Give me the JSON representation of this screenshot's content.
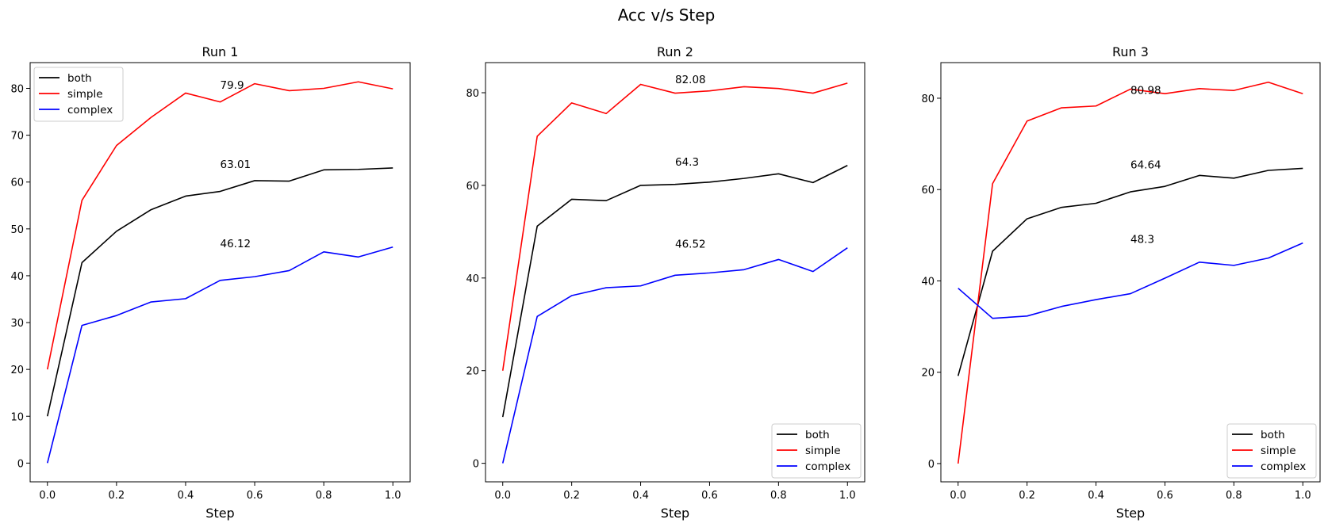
{
  "figure_title": "Acc v/s Step",
  "colors": {
    "both": "#000000",
    "simple": "#ff0000",
    "complex": "#0000ff"
  },
  "chart_data": [
    {
      "type": "line",
      "title": "Run 1",
      "xlabel": "Step",
      "ylabel": "",
      "x": [
        0.0,
        0.1,
        0.2,
        0.3,
        0.4,
        0.5,
        0.6,
        0.7,
        0.8,
        0.9,
        1.0
      ],
      "xlim": [
        -0.05,
        1.05
      ],
      "ylim": [
        -4,
        85.5
      ],
      "xticks": [
        0.0,
        0.2,
        0.4,
        0.6,
        0.8,
        1.0
      ],
      "xtick_labels": [
        "0.0",
        "0.2",
        "0.4",
        "0.6",
        "0.8",
        "1.0"
      ],
      "yticks": [
        0,
        10,
        20,
        30,
        40,
        50,
        60,
        70,
        80
      ],
      "ytick_labels": [
        "0",
        "10",
        "20",
        "30",
        "40",
        "50",
        "60",
        "70",
        "80"
      ],
      "legend_position": "upper-left",
      "grid": false,
      "series": [
        {
          "name": "both",
          "color": "#000000",
          "values": [
            10,
            42.8,
            49.5,
            54.1,
            57,
            58,
            60.3,
            60.2,
            62.6,
            62.7,
            63.01
          ]
        },
        {
          "name": "simple",
          "color": "#ff0000",
          "values": [
            20,
            56.1,
            67.8,
            73.8,
            79,
            77.1,
            81,
            79.5,
            80,
            81.4,
            79.9
          ]
        },
        {
          "name": "complex",
          "color": "#0000ff",
          "values": [
            0,
            29.4,
            31.5,
            34.4,
            35.1,
            39,
            39.8,
            41.1,
            45.1,
            44,
            46.12
          ]
        }
      ],
      "annotations": [
        {
          "text": "79.9",
          "x": 0.5,
          "y": 79.9
        },
        {
          "text": "63.01",
          "x": 0.5,
          "y": 63.01
        },
        {
          "text": "46.12",
          "x": 0.5,
          "y": 46.12
        }
      ]
    },
    {
      "type": "line",
      "title": "Run 2",
      "xlabel": "Step",
      "ylabel": "",
      "x": [
        0.0,
        0.1,
        0.2,
        0.3,
        0.4,
        0.5,
        0.6,
        0.7,
        0.8,
        0.9,
        1.0
      ],
      "xlim": [
        -0.05,
        1.05
      ],
      "ylim": [
        -4,
        86.5
      ],
      "xticks": [
        0.0,
        0.2,
        0.4,
        0.6,
        0.8,
        1.0
      ],
      "xtick_labels": [
        "0.0",
        "0.2",
        "0.4",
        "0.6",
        "0.8",
        "1.0"
      ],
      "yticks": [
        0,
        20,
        40,
        60,
        80
      ],
      "ytick_labels": [
        "0",
        "20",
        "40",
        "60",
        "80"
      ],
      "legend_position": "lower-right",
      "grid": false,
      "series": [
        {
          "name": "both",
          "color": "#000000",
          "values": [
            10,
            51.2,
            57,
            56.7,
            60,
            60.2,
            60.7,
            61.5,
            62.5,
            60.6,
            64.3
          ]
        },
        {
          "name": "simple",
          "color": "#ff0000",
          "values": [
            20,
            70.6,
            77.8,
            75.5,
            81.8,
            79.9,
            80.4,
            81.3,
            80.9,
            79.9,
            82.08
          ]
        },
        {
          "name": "complex",
          "color": "#0000ff",
          "values": [
            0,
            31.7,
            36.2,
            37.9,
            38.3,
            40.6,
            41.1,
            41.8,
            44,
            41.4,
            46.52
          ]
        }
      ],
      "annotations": [
        {
          "text": "82.08",
          "x": 0.5,
          "y": 82.08
        },
        {
          "text": "64.3",
          "x": 0.5,
          "y": 64.3
        },
        {
          "text": "46.52",
          "x": 0.5,
          "y": 46.52
        }
      ]
    },
    {
      "type": "line",
      "title": "Run 3",
      "xlabel": "Step",
      "ylabel": "",
      "x": [
        0.0,
        0.1,
        0.2,
        0.3,
        0.4,
        0.5,
        0.6,
        0.7,
        0.8,
        0.9,
        1.0
      ],
      "xlim": [
        -0.05,
        1.05
      ],
      "ylim": [
        -4,
        87.8
      ],
      "xticks": [
        0.0,
        0.2,
        0.4,
        0.6,
        0.8,
        1.0
      ],
      "xtick_labels": [
        "0.0",
        "0.2",
        "0.4",
        "0.6",
        "0.8",
        "1.0"
      ],
      "yticks": [
        0,
        20,
        40,
        60,
        80
      ],
      "ytick_labels": [
        "0",
        "20",
        "40",
        "60",
        "80"
      ],
      "legend_position": "lower-right",
      "grid": false,
      "series": [
        {
          "name": "both",
          "color": "#000000",
          "values": [
            19.2,
            46.5,
            53.6,
            56.1,
            57,
            59.5,
            60.7,
            63.1,
            62.5,
            64.2,
            64.64
          ]
        },
        {
          "name": "simple",
          "color": "#ff0000",
          "values": [
            0,
            61.3,
            75,
            77.9,
            78.3,
            82,
            81,
            82.1,
            81.7,
            83.5,
            80.98
          ]
        },
        {
          "name": "complex",
          "color": "#0000ff",
          "values": [
            38.4,
            31.8,
            32.3,
            34.4,
            35.9,
            37.2,
            40.6,
            44.1,
            43.4,
            45,
            48.3
          ]
        }
      ],
      "annotations": [
        {
          "text": "80.98",
          "x": 0.5,
          "y": 80.98
        },
        {
          "text": "64.64",
          "x": 0.5,
          "y": 64.64
        },
        {
          "text": "48.3",
          "x": 0.5,
          "y": 48.3
        }
      ]
    }
  ]
}
